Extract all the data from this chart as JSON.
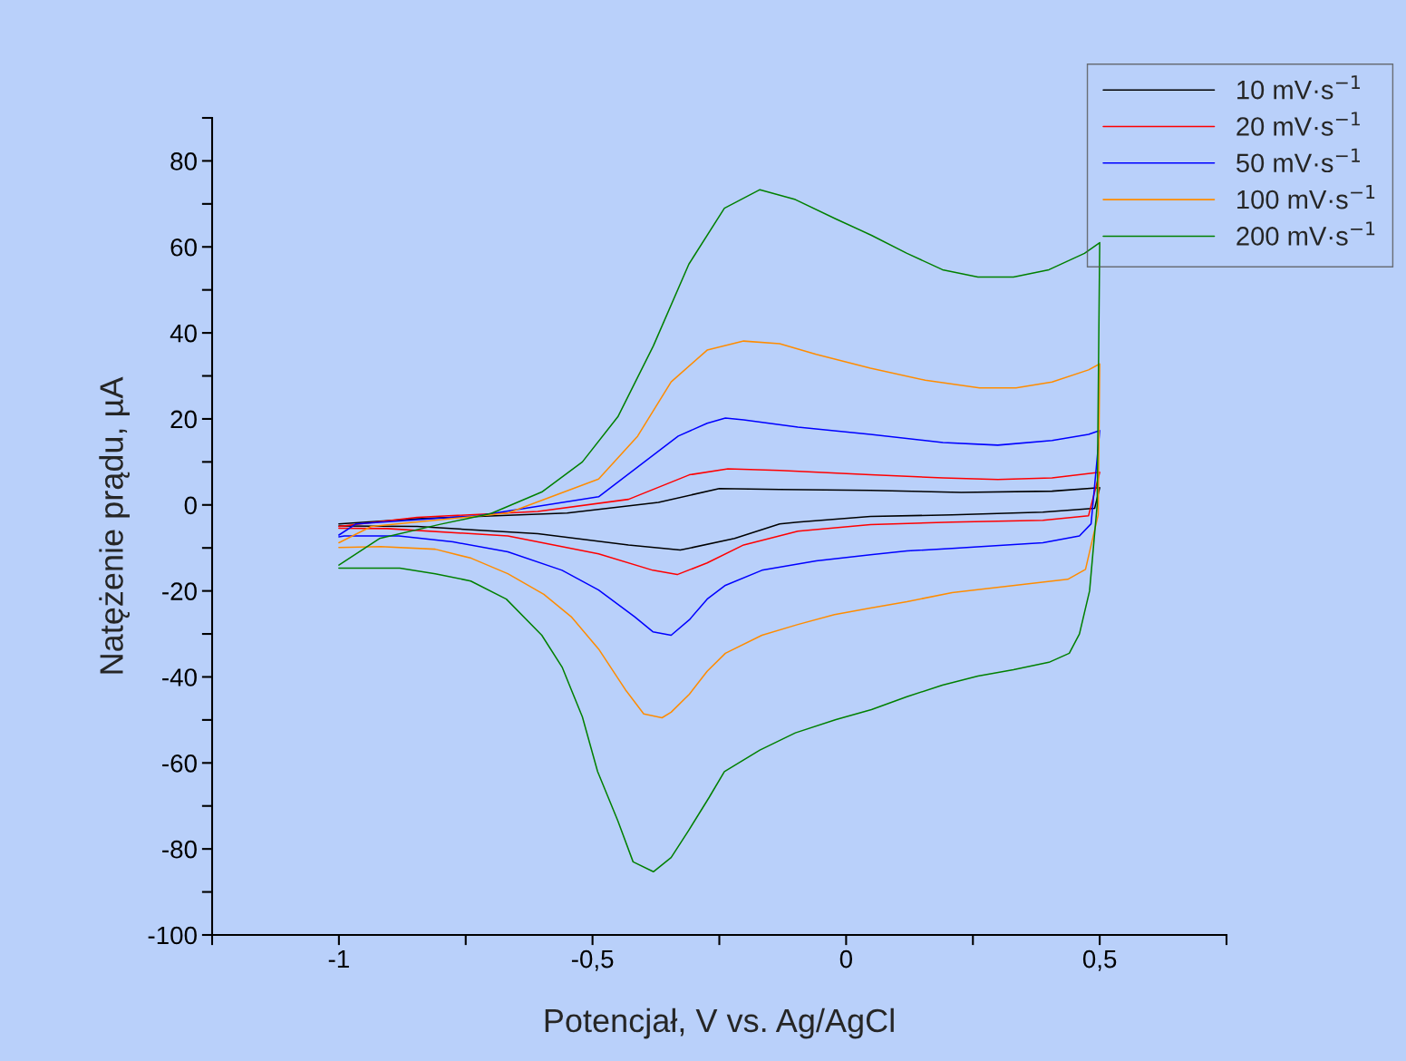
{
  "chart_data": {
    "type": "line",
    "xlabel": "Potencjał, V vs. Ag/AgCl",
    "ylabel": "Natężenie prądu, µA",
    "xlim": [
      -1.25,
      0.75
    ],
    "ylim": [
      -100,
      90
    ],
    "xticks": [
      {
        "value": -1.25,
        "label": null
      },
      {
        "value": -1,
        "label": "-1"
      },
      {
        "value": -0.75,
        "label": null
      },
      {
        "value": -0.5,
        "label": "-0,5"
      },
      {
        "value": -0.25,
        "label": null
      },
      0,
      {
        "value": 0.25,
        "label": null
      },
      {
        "value": 0.5,
        "label": "0,5"
      },
      {
        "value": 0.75,
        "label": null
      }
    ],
    "yticks": [
      -100,
      {
        "value": -90,
        "label": null
      },
      -80,
      {
        "value": -70,
        "label": null
      },
      -60,
      {
        "value": -50,
        "label": null
      },
      -40,
      {
        "value": -30,
        "label": null
      },
      -20,
      {
        "value": -10,
        "label": null
      },
      0,
      {
        "value": 10,
        "label": null
      },
      20,
      {
        "value": 30,
        "label": null
      },
      40,
      {
        "value": 50,
        "label": null
      },
      60,
      {
        "value": 70,
        "label": null
      },
      80,
      {
        "value": 90,
        "label": null
      }
    ],
    "grid": false,
    "legend": "top right",
    "marker": "none",
    "line_style": "solid",
    "series": [
      {
        "name": "10 mV·s$^{−1}$",
        "color": "#000000",
        "x": [
          -1,
          -0.846,
          -0.55,
          -0.37,
          -0.25,
          -0.131,
          0.048,
          0.227,
          0.406,
          0.5,
          0.49,
          0.388,
          0.209,
          0.048,
          -0.095,
          -0.131,
          -0.22,
          -0.327,
          -0.429,
          -0.608,
          -0.846,
          -1
        ],
        "values": [
          -4.4,
          -3.2,
          -1.9,
          0.6,
          3.8,
          3.6,
          3.4,
          2.9,
          3.2,
          4,
          -0.8,
          -1.7,
          -2.3,
          -2.7,
          -4,
          -4.4,
          -7.8,
          -10.5,
          -9.3,
          -6.7,
          -5,
          -4.9
        ]
      },
      {
        "name": "20 mV·s$^{−1}$",
        "color": "#ff0000",
        "x": [
          -1,
          -0.846,
          -0.608,
          -0.429,
          -0.309,
          -0.233,
          -0.131,
          0.048,
          0.191,
          0.299,
          0.406,
          0.5,
          0.478,
          0.388,
          0.209,
          0.048,
          -0.095,
          -0.202,
          -0.274,
          -0.333,
          -0.381,
          -0.488,
          -0.667,
          -0.905,
          -1
        ],
        "values": [
          -5,
          -2.9,
          -1.5,
          1.3,
          7,
          8.4,
          8,
          7,
          6.3,
          5.9,
          6.3,
          7.6,
          -2.5,
          -3.6,
          -4,
          -4.6,
          -6.1,
          -9.3,
          -13.5,
          -16.2,
          -15.2,
          -11.4,
          -7.2,
          -5.5,
          -5.4
        ]
      },
      {
        "name": "50 mV·s$^{−1}$",
        "color": "#0000ff",
        "x": [
          -1,
          -0.966,
          -0.726,
          -0.488,
          -0.331,
          -0.274,
          -0.238,
          -0.202,
          -0.095,
          0.048,
          0.191,
          0.299,
          0.406,
          0.478,
          0.5,
          0.483,
          0.46,
          0.388,
          0.209,
          0.12,
          0.048,
          -0.059,
          -0.166,
          -0.238,
          -0.274,
          -0.309,
          -0.345,
          -0.381,
          -0.417,
          -0.488,
          -0.56,
          -0.667,
          -0.775,
          -0.882,
          -0.989,
          -1
        ],
        "values": [
          -7,
          -4.4,
          -2.5,
          1.9,
          16,
          19,
          20.2,
          19.8,
          18.1,
          16.4,
          14.5,
          13.9,
          15,
          16.4,
          17.3,
          -4.4,
          -7.2,
          -8.8,
          -10.1,
          -10.7,
          -11.6,
          -13,
          -15.2,
          -18.7,
          -21.9,
          -26.7,
          -30.3,
          -29.5,
          -26,
          -19.8,
          -15.2,
          -10.9,
          -8.6,
          -7.2,
          -7.2,
          -7.4
        ]
      },
      {
        "name": "100 mV·s$^{−1}$",
        "color": "#ff8c00",
        "x": [
          -1,
          -0.936,
          -0.667,
          -0.488,
          -0.411,
          -0.345,
          -0.274,
          -0.202,
          -0.131,
          -0.059,
          0.048,
          0.156,
          0.263,
          0.335,
          0.406,
          0.478,
          0.5,
          0.497,
          0.472,
          0.437,
          0.209,
          0.12,
          0.048,
          -0.023,
          -0.095,
          -0.166,
          -0.238,
          -0.274,
          -0.309,
          -0.345,
          -0.363,
          -0.399,
          -0.435,
          -0.488,
          -0.542,
          -0.596,
          -0.667,
          -0.739,
          -0.81,
          -0.918,
          -1
        ],
        "values": [
          -8.8,
          -5,
          -1.9,
          6,
          16,
          28.6,
          36,
          38.1,
          37.5,
          35,
          31.8,
          29,
          27.2,
          27.2,
          28.6,
          31.4,
          32.8,
          -2.3,
          -15,
          -17.3,
          -20.4,
          -22.5,
          -24,
          -25.5,
          -27.8,
          -30.3,
          -34.5,
          -38.7,
          -44,
          -48.2,
          -49.5,
          -48.6,
          -43,
          -33.5,
          -26,
          -20.8,
          -16,
          -12.4,
          -10.3,
          -9.7,
          -9.9
        ]
      },
      {
        "name": "200 mV·s$^{−1}$",
        "color": "#008000",
        "x": [
          -1,
          -0.92,
          -0.8,
          -0.7,
          -0.6,
          -0.52,
          -0.45,
          -0.38,
          -0.31,
          -0.24,
          -0.17,
          -0.1,
          -0.02,
          0.05,
          0.12,
          0.19,
          0.26,
          0.33,
          0.4,
          0.47,
          0.5,
          0.495,
          0.48,
          0.46,
          0.44,
          0.4,
          0.33,
          0.26,
          0.19,
          0.12,
          0.05,
          -0.02,
          -0.1,
          -0.17,
          -0.24,
          -0.27,
          -0.31,
          -0.345,
          -0.38,
          -0.42,
          -0.45,
          -0.49,
          -0.52,
          -0.56,
          -0.6,
          -0.67,
          -0.74,
          -0.81,
          -0.88,
          -1
        ],
        "values": [
          -14,
          -7.8,
          -4.5,
          -2,
          3,
          10,
          20.5,
          37,
          56,
          69,
          73.3,
          71,
          66.5,
          62.7,
          58.5,
          54.7,
          53,
          53,
          54.7,
          58.5,
          61,
          0,
          -20,
          -30,
          -34.5,
          -36.6,
          -38.3,
          -39.8,
          -41.9,
          -44.6,
          -47.6,
          -49.9,
          -53,
          -57,
          -62,
          -68,
          -75.6,
          -82,
          -85.3,
          -83,
          -73.5,
          -62,
          -49.3,
          -37.7,
          -30.3,
          -21.9,
          -17.7,
          -16,
          -14.7,
          -14.7
        ]
      }
    ]
  }
}
